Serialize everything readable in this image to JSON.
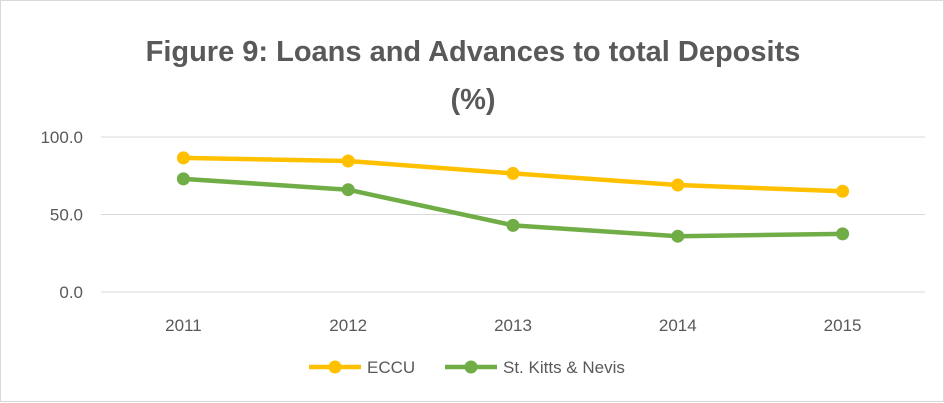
{
  "chart_data": {
    "type": "line",
    "title": "Figure 9:  Loans and Advances to total Deposits",
    "title_line2": "(%)",
    "xlabel": "",
    "ylabel": "",
    "categories": [
      "2011",
      "2012",
      "2013",
      "2014",
      "2015"
    ],
    "ylim": [
      0,
      100
    ],
    "yticks": [
      0,
      50,
      100
    ],
    "ytick_labels": [
      "0.0",
      "50.0",
      "100.0"
    ],
    "grid": true,
    "legend_position": "bottom",
    "series": [
      {
        "name": "ECCU",
        "color": "#FFC000",
        "values": [
          86.5,
          84.5,
          76.5,
          69.0,
          65.0
        ]
      },
      {
        "name": "St. Kitts & Nevis",
        "color": "#70AD47",
        "values": [
          73.0,
          66.0,
          43.0,
          36.0,
          37.5
        ]
      }
    ]
  }
}
